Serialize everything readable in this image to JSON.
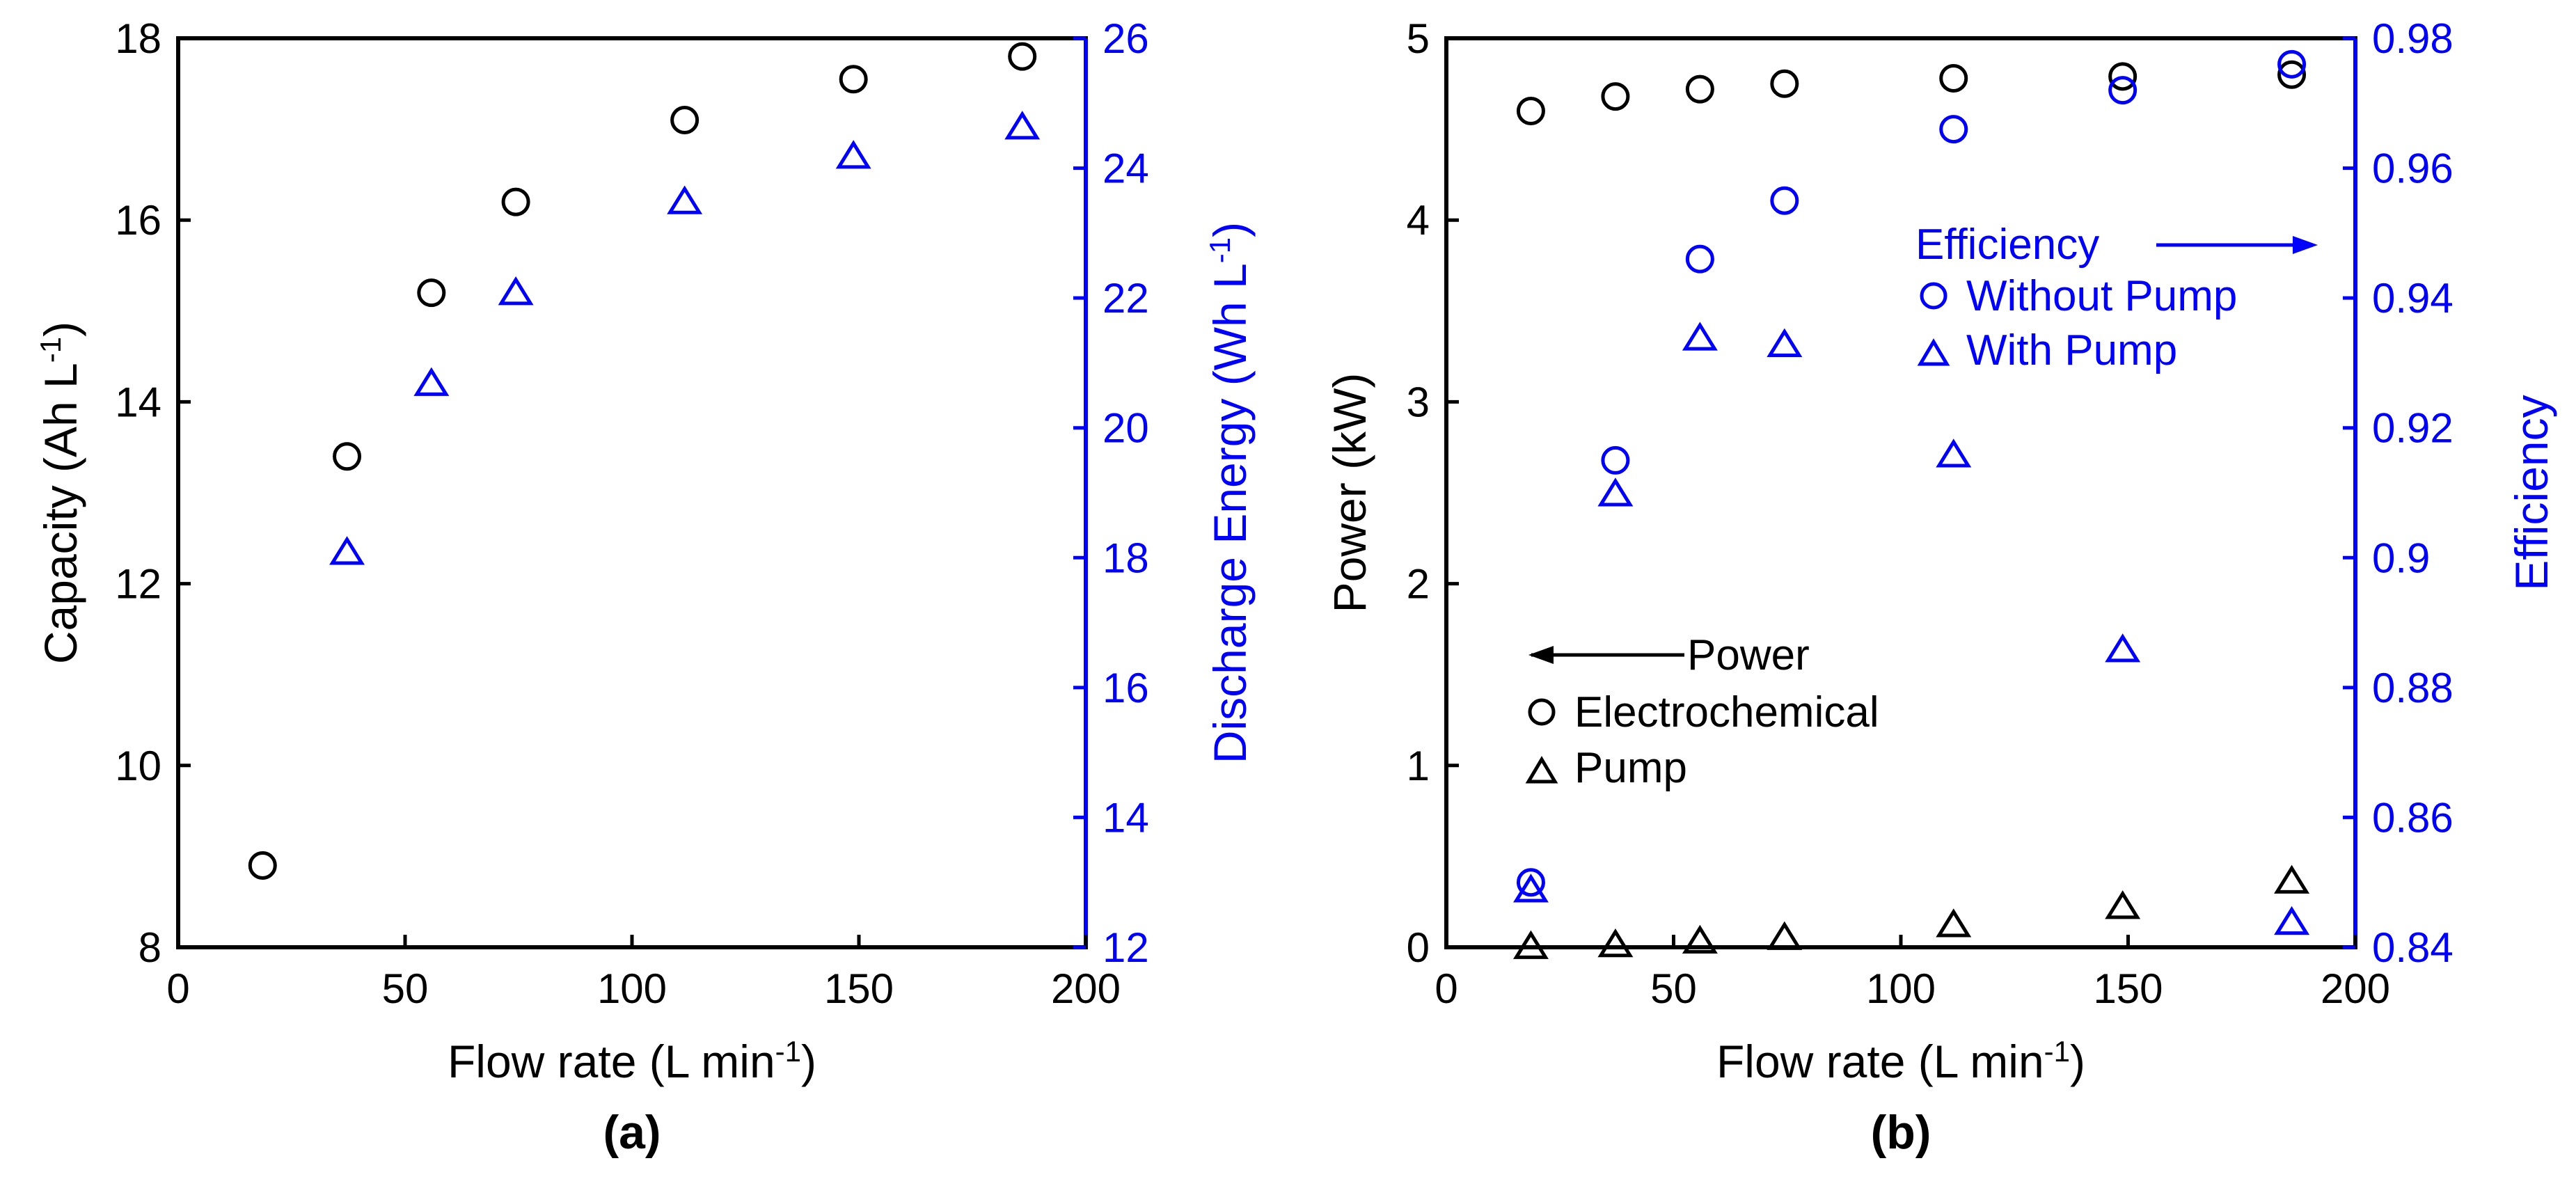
{
  "chart_data": [
    {
      "type": "scatter",
      "panel_label": "(a)",
      "xlabel": "Flow rate (L min",
      "xlabel_sup": "-1",
      "xlabel_end": ")",
      "ylabel": "Capacity (Ah L",
      "ylabel_sup": "-1",
      "ylabel_end": ")",
      "y2label": "Discharge Energy (Wh L",
      "y2label_sup": "-1",
      "y2label_end": ")",
      "xlim": [
        0,
        200
      ],
      "ylim": [
        8,
        18
      ],
      "y2lim": [
        12,
        26
      ],
      "xticks": [
        "0",
        "50",
        "100",
        "150",
        "200"
      ],
      "yticks": [
        "8",
        "10",
        "12",
        "14",
        "16",
        "18"
      ],
      "y2ticks": [
        "12",
        "14",
        "16",
        "18",
        "20",
        "22",
        "24",
        "26"
      ],
      "series": [
        {
          "name": "Capacity",
          "axis": "left",
          "marker": "circle",
          "color": "#000000",
          "x": [
            18.6,
            37.2,
            55.8,
            74.4,
            111.6,
            148.8,
            186
          ],
          "y": [
            8.9,
            13.4,
            15.2,
            16.2,
            17.1,
            17.55,
            17.8
          ]
        },
        {
          "name": "Discharge Energy",
          "axis": "right",
          "marker": "triangle",
          "color": "#0000ff",
          "x": [
            37.2,
            55.8,
            74.4,
            111.6,
            148.8,
            186
          ],
          "y": [
            18.1,
            20.7,
            22.1,
            23.5,
            24.2,
            24.65
          ]
        }
      ]
    },
    {
      "type": "scatter",
      "panel_label": "(b)",
      "xlabel": "Flow rate (L min",
      "xlabel_sup": "-1",
      "xlabel_end": ")",
      "ylabel": "Power (kW)",
      "y2label": "Efficiency",
      "xlim": [
        0,
        200
      ],
      "ylim": [
        0,
        5
      ],
      "y2lim": [
        0.84,
        0.98
      ],
      "xticks": [
        "0",
        "50",
        "100",
        "150",
        "200"
      ],
      "yticks": [
        "0",
        "1",
        "2",
        "3",
        "4",
        "5"
      ],
      "y2ticks": [
        "0.84",
        "0.86",
        "0.88",
        "0.9",
        "0.92",
        "0.94",
        "0.96",
        "0.98"
      ],
      "legend_power": {
        "title": "Power",
        "items": [
          "Electrochemical",
          "Pump"
        ]
      },
      "legend_eff": {
        "title": "Efficiency",
        "items": [
          "Without Pump",
          "With Pump"
        ]
      },
      "series": [
        {
          "name": "Electrochemical",
          "axis": "left",
          "marker": "circle",
          "color": "#000000",
          "x": [
            18.6,
            37.2,
            55.8,
            74.4,
            111.6,
            148.8,
            186
          ],
          "y": [
            4.6,
            4.68,
            4.72,
            4.75,
            4.78,
            4.79,
            4.8
          ]
        },
        {
          "name": "Pump",
          "axis": "left",
          "marker": "triangle",
          "color": "#000000",
          "x": [
            18.6,
            37.2,
            55.8,
            74.4,
            111.6,
            148.8,
            186
          ],
          "y": [
            0.01,
            0.02,
            0.04,
            0.06,
            0.13,
            0.23,
            0.37
          ]
        },
        {
          "name": "Without Pump",
          "axis": "right",
          "marker": "circle",
          "color": "#0000ff",
          "x": [
            18.6,
            37.2,
            55.8,
            74.4,
            111.6,
            148.8,
            186
          ],
          "y": [
            0.85,
            0.915,
            0.946,
            0.955,
            0.966,
            0.972,
            0.976
          ]
        },
        {
          "name": "With Pump",
          "axis": "right",
          "marker": "triangle",
          "color": "#0000ff",
          "x": [
            18.6,
            37.2,
            55.8,
            74.4,
            111.6,
            148.8,
            186
          ],
          "y": [
            0.849,
            0.91,
            0.934,
            0.933,
            0.916,
            0.886,
            0.844
          ]
        }
      ]
    }
  ]
}
